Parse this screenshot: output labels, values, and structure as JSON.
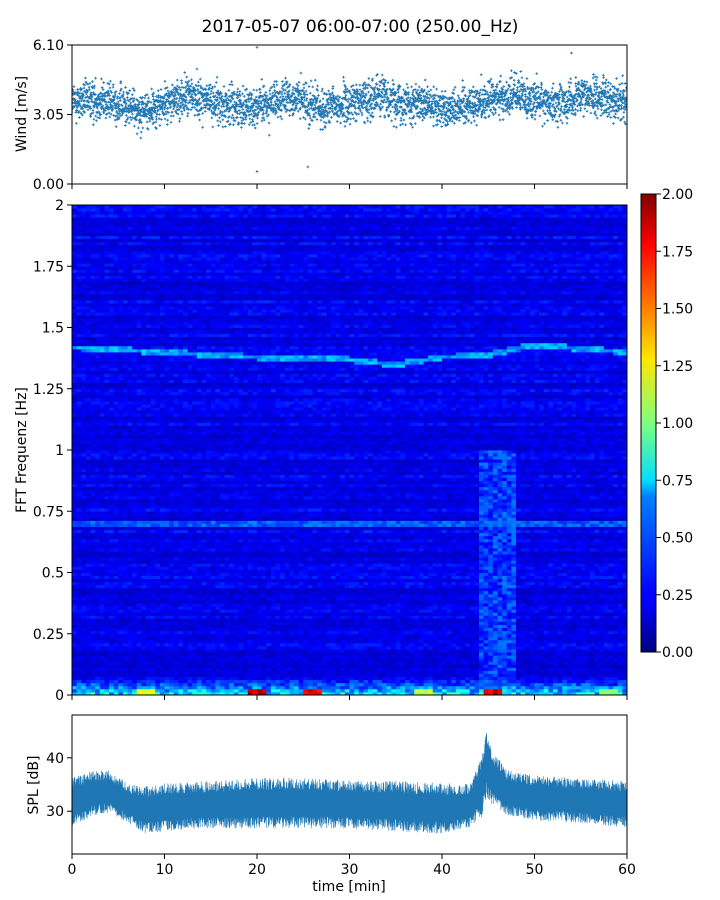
{
  "figure": {
    "title": "2017-05-07 06:00-07:00 (250.00_Hz)"
  },
  "chart_data": [
    {
      "type": "scatter",
      "name": "wind",
      "ylabel": "Wind [m/s]",
      "xlim": [
        0,
        60
      ],
      "ylim": [
        0,
        6.1
      ],
      "yticks": [
        0,
        3.05,
        6.1
      ],
      "yticklabels": [
        "0.00",
        "3.05",
        "6.10"
      ],
      "xticks": [
        0,
        10,
        20,
        30,
        40,
        50,
        60
      ],
      "marker": "+",
      "color": "#1f77b4",
      "samples_per_minute": 60,
      "mean_trend": [
        {
          "x": 0,
          "y": 3.6
        },
        {
          "x": 3,
          "y": 3.7
        },
        {
          "x": 6,
          "y": 3.4
        },
        {
          "x": 8,
          "y": 3.2
        },
        {
          "x": 10,
          "y": 3.5
        },
        {
          "x": 13,
          "y": 3.9
        },
        {
          "x": 16,
          "y": 3.5
        },
        {
          "x": 20,
          "y": 3.4
        },
        {
          "x": 24,
          "y": 3.8
        },
        {
          "x": 27,
          "y": 3.3
        },
        {
          "x": 30,
          "y": 3.5
        },
        {
          "x": 33,
          "y": 3.9
        },
        {
          "x": 36,
          "y": 3.6
        },
        {
          "x": 40,
          "y": 3.3
        },
        {
          "x": 44,
          "y": 3.6
        },
        {
          "x": 48,
          "y": 3.9
        },
        {
          "x": 52,
          "y": 3.5
        },
        {
          "x": 56,
          "y": 3.9
        },
        {
          "x": 60,
          "y": 3.6
        }
      ],
      "spread": 0.7,
      "notable_points": [
        {
          "x": 20,
          "y": 6.0
        },
        {
          "x": 20,
          "y": 0.55
        },
        {
          "x": 54,
          "y": 5.75
        },
        {
          "x": 25.5,
          "y": 0.75
        }
      ]
    },
    {
      "type": "heatmap",
      "name": "spectrogram",
      "ylabel": "FFT Frequenz [Hz]",
      "xlim": [
        0,
        60
      ],
      "ylim": [
        0,
        2
      ],
      "yticks": [
        0,
        0.25,
        0.5,
        0.75,
        1,
        1.25,
        1.5,
        1.75,
        2
      ],
      "yticklabels": [
        "0",
        "0.25",
        "0.5",
        "0.75",
        "1",
        "1.25",
        "1.5",
        "1.75",
        "2"
      ],
      "xticks": [
        0,
        10,
        20,
        30,
        40,
        50,
        60
      ],
      "colormap": "jet",
      "colorbar": {
        "range": [
          0,
          2
        ],
        "ticks": [
          0,
          0.25,
          0.5,
          0.75,
          1,
          1.25,
          1.5,
          1.75,
          2
        ],
        "ticklabels": [
          "0.00",
          "0.25",
          "0.50",
          "0.75",
          "1.00",
          "1.25",
          "1.50",
          "1.75",
          "2.00"
        ]
      },
      "background_level": 0.2,
      "time_bins": 120,
      "freq_bins": 160,
      "ridges": [
        {
          "label": "tonal line ~1.4 Hz",
          "points": [
            {
              "t": 0,
              "f": 1.42
            },
            {
              "t": 10,
              "f": 1.4
            },
            {
              "t": 20,
              "f": 1.38
            },
            {
              "t": 30,
              "f": 1.37
            },
            {
              "t": 35,
              "f": 1.35
            },
            {
              "t": 40,
              "f": 1.38
            },
            {
              "t": 45,
              "f": 1.39
            },
            {
              "t": 50,
              "f": 1.43
            },
            {
              "t": 60,
              "f": 1.4
            }
          ],
          "level": 0.6
        },
        {
          "label": "line ~0.7 Hz",
          "points": [
            {
              "t": 0,
              "f": 0.7
            },
            {
              "t": 60,
              "f": 0.7
            }
          ],
          "level": 0.45
        }
      ],
      "low_freq_energy": {
        "f_max": 0.1,
        "level": 0.9
      },
      "hotspots": [
        {
          "t": 20,
          "f": 0.01,
          "level": 2.0
        },
        {
          "t": 26,
          "f": 0.01,
          "level": 1.9
        },
        {
          "t": 45.5,
          "f": 0.01,
          "level": 2.0
        },
        {
          "t": 8,
          "f": 0.01,
          "level": 1.3
        },
        {
          "t": 38,
          "f": 0.01,
          "level": 1.2
        },
        {
          "t": 58,
          "f": 0.01,
          "level": 1.1
        }
      ],
      "event": {
        "t_start": 44,
        "t_end": 48,
        "level": 0.45
      }
    },
    {
      "type": "area",
      "name": "spl",
      "ylabel": "SPL [dB]",
      "xlabel": "time [min]",
      "xlim": [
        0,
        60
      ],
      "ylim": [
        22,
        48
      ],
      "yticks": [
        30,
        40
      ],
      "yticklabels": [
        "30",
        "40"
      ],
      "xticks": [
        0,
        10,
        20,
        30,
        40,
        50,
        60
      ],
      "xticklabels": [
        "0",
        "10",
        "20",
        "30",
        "40",
        "50",
        "60"
      ],
      "color": "#1f77b4",
      "envelope": [
        {
          "x": 0,
          "low": 27.5,
          "high": 36
        },
        {
          "x": 2,
          "low": 29,
          "high": 37.5
        },
        {
          "x": 4,
          "low": 30,
          "high": 37.5
        },
        {
          "x": 6,
          "low": 28,
          "high": 35
        },
        {
          "x": 8,
          "low": 26,
          "high": 34.5
        },
        {
          "x": 10,
          "low": 26.5,
          "high": 35
        },
        {
          "x": 15,
          "low": 27,
          "high": 35.5
        },
        {
          "x": 20,
          "low": 27,
          "high": 36
        },
        {
          "x": 25,
          "low": 27,
          "high": 36
        },
        {
          "x": 30,
          "low": 27,
          "high": 35.5
        },
        {
          "x": 35,
          "low": 26.5,
          "high": 35.5
        },
        {
          "x": 40,
          "low": 26,
          "high": 35
        },
        {
          "x": 43,
          "low": 27,
          "high": 35
        },
        {
          "x": 44.3,
          "low": 29,
          "high": 40
        },
        {
          "x": 44.8,
          "low": 33,
          "high": 45
        },
        {
          "x": 45.5,
          "low": 31,
          "high": 41
        },
        {
          "x": 47,
          "low": 29.5,
          "high": 37.5
        },
        {
          "x": 50,
          "low": 28.5,
          "high": 36.5
        },
        {
          "x": 55,
          "low": 28,
          "high": 36
        },
        {
          "x": 60,
          "low": 27,
          "high": 35.5
        }
      ]
    }
  ]
}
